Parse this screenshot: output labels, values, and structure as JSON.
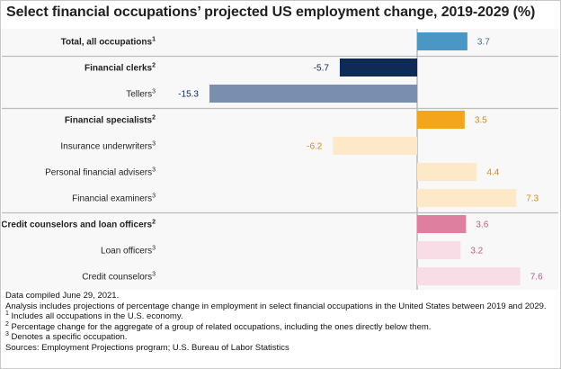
{
  "chart_data": {
    "type": "bar",
    "orientation": "horizontal",
    "title": "Select financial occupations’ projected US employment change, 2019-2029 (%)",
    "xlabel": "",
    "ylabel": "",
    "xlim": [
      -16,
      8.5
    ],
    "grid": false,
    "groups": [
      {
        "name": "Total",
        "rows": [
          {
            "label": "Total, all occupations",
            "marker": "1",
            "value": 3.7,
            "value_label": "3.7",
            "bold": true,
            "color": "#4a96c4",
            "label_color": "#3b6f96"
          }
        ]
      },
      {
        "name": "Financial clerks",
        "rows": [
          {
            "label": "Financial clerks",
            "marker": "2",
            "value": -5.7,
            "value_label": "-5.7",
            "bold": true,
            "color": "#0e2a57",
            "label_color": "#0e2a57"
          },
          {
            "label": "Tellers",
            "marker": "3",
            "value": -15.3,
            "value_label": "-15.3",
            "bold": false,
            "color": "#7a8fb0",
            "label_color": "#0e2a57"
          }
        ]
      },
      {
        "name": "Financial specialists",
        "rows": [
          {
            "label": "Financial specialists",
            "marker": "2",
            "value": 3.5,
            "value_label": "3.5",
            "bold": true,
            "color": "#f4a51c",
            "label_color": "#d98a0a"
          },
          {
            "label": "Insurance underwriters",
            "marker": "3",
            "value": -6.2,
            "value_label": "-6.2",
            "bold": false,
            "color": "#fde9c8",
            "label_color": "#d98a0a"
          },
          {
            "label": "Personal financial advisers",
            "marker": "3",
            "value": 4.4,
            "value_label": "4.4",
            "bold": false,
            "color": "#fde9c8",
            "label_color": "#d98a0a"
          },
          {
            "label": "Financial examiners",
            "marker": "3",
            "value": 7.3,
            "value_label": "7.3",
            "bold": false,
            "color": "#fde9c8",
            "label_color": "#d98a0a"
          }
        ]
      },
      {
        "name": "Credit counselors and loan officers",
        "rows": [
          {
            "label": "Credit counselors and loan officers",
            "marker": "2",
            "value": 3.6,
            "value_label": "3.6",
            "bold": true,
            "color": "#de7fa0",
            "label_color": "#c25a80"
          },
          {
            "label": "Loan officers",
            "marker": "3",
            "value": 3.2,
            "value_label": "3.2",
            "bold": false,
            "color": "#f8dde6",
            "label_color": "#c25a80"
          },
          {
            "label": "Credit counselors",
            "marker": "3",
            "value": 7.6,
            "value_label": "7.6",
            "bold": false,
            "color": "#f8dde6",
            "label_color": "#c25a80"
          }
        ]
      }
    ]
  },
  "notes": [
    {
      "text": "Data compiled June 29, 2021."
    },
    {
      "text": "Analysis includes projections of percentage change in employment in select financial occupations in the United States between 2019 and 2029."
    },
    {
      "marker": "1",
      "text": " Includes all occupations in the U.S. economy."
    },
    {
      "marker": "2",
      "text": " Percentage change for the aggregate of a group of related occupations, including the ones directly below them."
    },
    {
      "marker": "3",
      "text": " Denotes a specific occupation."
    },
    {
      "text": "Sources: Employment Projections program; U.S. Bureau of Labor Statistics"
    }
  ],
  "colors": {
    "plot_background": "#f8f8f8",
    "separator": "#bdbdbd",
    "zero_line": "#9a9a9a"
  }
}
